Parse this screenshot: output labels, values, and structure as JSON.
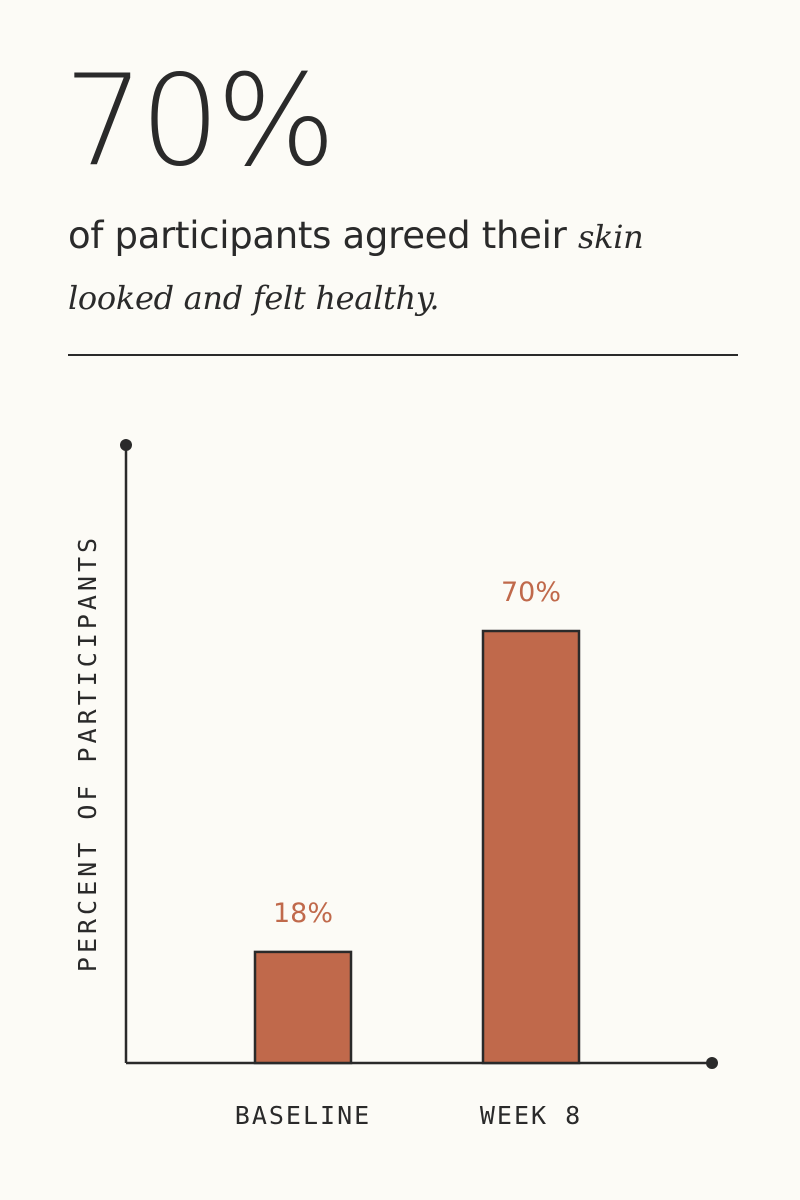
{
  "headline": {
    "stat": "70%",
    "text_before": "of participants agreed their ",
    "text_emphasis": "skin looked and felt healthy."
  },
  "chart_data": {
    "type": "bar",
    "categories": [
      "BASELINE",
      "WEEK 8"
    ],
    "values": [
      18,
      70
    ],
    "value_labels": [
      "18%",
      "70%"
    ],
    "title": "",
    "xlabel": "",
    "ylabel": "PERCENT OF PARTICIPANTS",
    "ylim": [
      0,
      100
    ],
    "grid": false,
    "bar_color": "#c0694b",
    "axis_color": "#2a2a2a"
  }
}
